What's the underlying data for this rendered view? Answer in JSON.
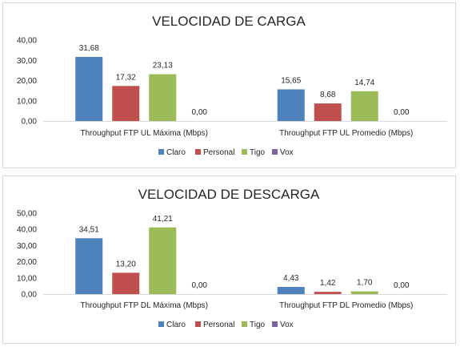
{
  "chart_data": [
    {
      "type": "bar",
      "title": "VELOCIDAD DE CARGA",
      "categories": [
        "Throughput FTP UL Máxima (Mbps)",
        "Throughput FTP UL Promedio (Mbps)"
      ],
      "series": [
        {
          "name": "Claro",
          "color": "#4f81bd",
          "values": [
            31.68,
            15.65
          ],
          "labels": [
            "31,68",
            "15,65"
          ]
        },
        {
          "name": "Personal",
          "color": "#c0504d",
          "values": [
            17.32,
            8.68
          ],
          "labels": [
            "17,32",
            "8,68"
          ]
        },
        {
          "name": "Tigo",
          "color": "#9bbb59",
          "values": [
            23.13,
            14.74
          ],
          "labels": [
            "23,13",
            "14,74"
          ]
        },
        {
          "name": "Vox",
          "color": "#8064a2",
          "values": [
            0,
            0
          ],
          "labels": [
            "0,00",
            "0,00"
          ]
        }
      ],
      "ylim": [
        0,
        40
      ],
      "yticks": [
        "0,00",
        "10,00",
        "20,00",
        "30,00",
        "40,00"
      ],
      "grid": false,
      "legend_position": "bottom"
    },
    {
      "type": "bar",
      "title": "VELOCIDAD DE DESCARGA",
      "categories": [
        "Throughput FTP DL Máxima (Mbps)",
        "Throughput FTP DL Promedio (Mbps)"
      ],
      "series": [
        {
          "name": "Claro",
          "color": "#4f81bd",
          "values": [
            34.51,
            4.43
          ],
          "labels": [
            "34,51",
            "4,43"
          ]
        },
        {
          "name": "Personal",
          "color": "#c0504d",
          "values": [
            13.2,
            1.42
          ],
          "labels": [
            "13,20",
            "1,42"
          ]
        },
        {
          "name": "Tigo",
          "color": "#9bbb59",
          "values": [
            41.21,
            1.7
          ],
          "labels": [
            "41,21",
            "1,70"
          ]
        },
        {
          "name": "Vox",
          "color": "#8064a2",
          "values": [
            0,
            0
          ],
          "labels": [
            "0,00",
            "0,00"
          ]
        }
      ],
      "ylim": [
        0,
        50
      ],
      "yticks": [
        "0,00",
        "10,00",
        "20,00",
        "30,00",
        "40,00",
        "50,00"
      ],
      "grid": false,
      "legend_position": "bottom"
    }
  ]
}
